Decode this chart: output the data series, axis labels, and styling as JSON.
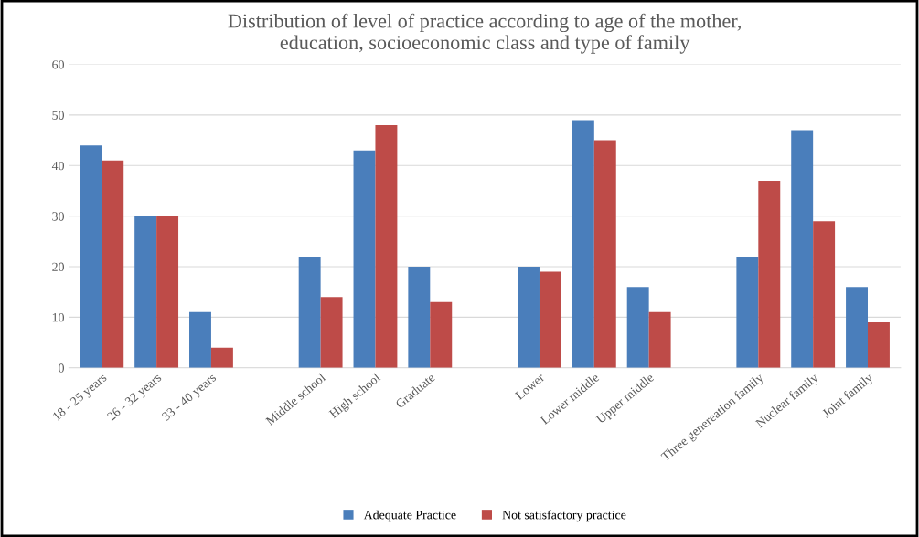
{
  "chart_data": {
    "type": "bar",
    "title": "Distribution of level of practice according to age of the mother,\neducation, socioeconomic class and type of family",
    "categories": [
      "18 - 25 years",
      "26 - 32 years",
      "33 - 40 years",
      null,
      "Middle school",
      "High school",
      "Graduate",
      null,
      "Lower",
      "Lower middle",
      "Upper middle",
      null,
      "Three genereation family",
      "Nuclear family",
      "Joint family"
    ],
    "series": [
      {
        "name": "Adequate Practice",
        "color": "#4a7ebb",
        "values": [
          44,
          30,
          11,
          null,
          22,
          43,
          20,
          null,
          20,
          49,
          16,
          null,
          22,
          47,
          16
        ]
      },
      {
        "name": "Not satisfactory practice",
        "color": "#be4b48",
        "values": [
          41,
          30,
          4,
          null,
          14,
          48,
          13,
          null,
          19,
          45,
          11,
          null,
          37,
          29,
          9
        ]
      }
    ],
    "ylim": [
      0,
      60
    ],
    "yticks": [
      0,
      10,
      20,
      30,
      40,
      50,
      60
    ],
    "grid": "y",
    "legend": "bottom"
  }
}
